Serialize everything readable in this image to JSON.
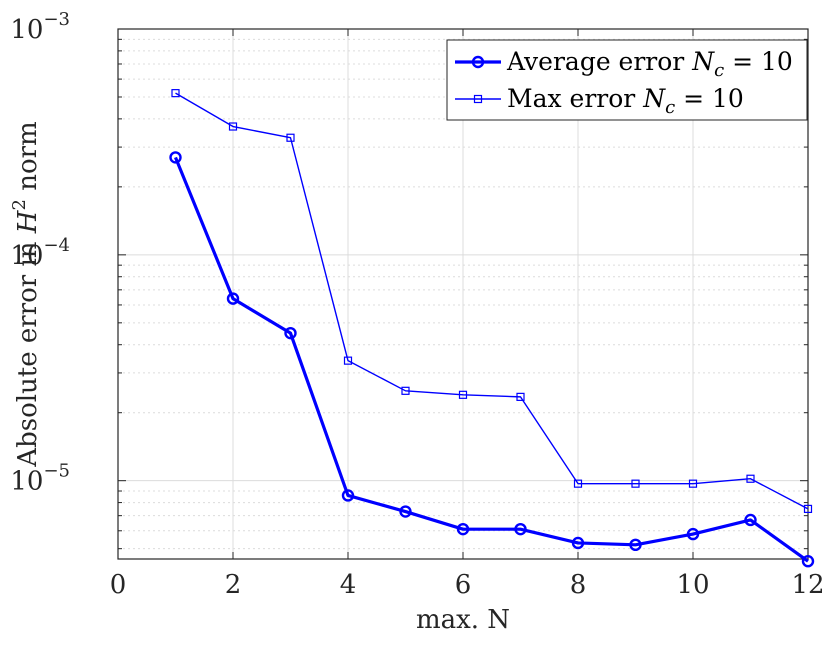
{
  "chart_data": {
    "type": "line",
    "xlabel": "max. N",
    "ylabel": {
      "prefix": "Absolute error in ",
      "var": "H",
      "sup": "2",
      "suffix": " norm"
    },
    "xlim": [
      0,
      12
    ],
    "ylim": [
      4.5e-06,
      0.001
    ],
    "yscale": "log",
    "grid": true,
    "minor_grid": true,
    "legend_position": "top-right",
    "x_ticks": [
      "0",
      "2",
      "4",
      "6",
      "8",
      "10",
      "12"
    ],
    "y_ticks": [
      {
        "base": "10",
        "exp": "−5",
        "value": 1e-05
      },
      {
        "base": "10",
        "exp": "−4",
        "value": 0.0001
      },
      {
        "base": "10",
        "exp": "−3",
        "value": 0.001
      }
    ],
    "colors": {
      "series": "#0000ff",
      "axis": "#262626",
      "grid": "#dcdcdc"
    },
    "series": [
      {
        "name": {
          "prefix": "Average error ",
          "var": "N",
          "sub": "c",
          "suffix": " = 10"
        },
        "marker": "circle",
        "line_width": "thick",
        "x": [
          1,
          2,
          3,
          4,
          5,
          6,
          7,
          8,
          9,
          10,
          11,
          12
        ],
        "values": [
          0.00027,
          6.4e-05,
          4.5e-05,
          8.6e-06,
          7.3e-06,
          6.1e-06,
          6.1e-06,
          5.3e-06,
          5.2e-06,
          5.8e-06,
          6.7e-06,
          4.4e-06
        ]
      },
      {
        "name": {
          "prefix": "Max error ",
          "var": "N",
          "sub": "c",
          "suffix": " = 10"
        },
        "marker": "square",
        "line_width": "thin",
        "x": [
          1,
          2,
          3,
          4,
          5,
          6,
          7,
          8,
          9,
          10,
          11,
          12
        ],
        "values": [
          0.00052,
          0.00037,
          0.00033,
          3.4e-05,
          2.5e-05,
          2.4e-05,
          2.35e-05,
          9.7e-06,
          9.7e-06,
          9.7e-06,
          1.02e-05,
          7.5e-06
        ]
      }
    ]
  }
}
